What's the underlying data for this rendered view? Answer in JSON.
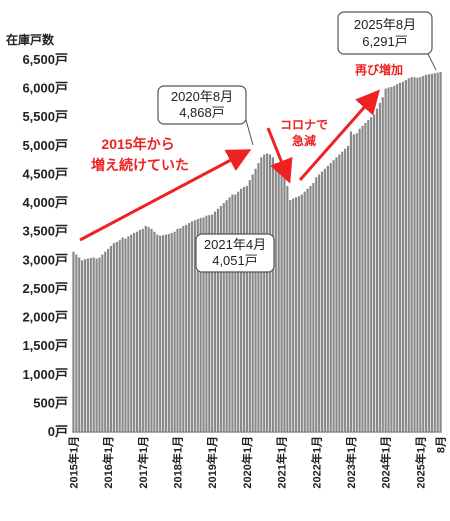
{
  "chart_data": {
    "type": "bar",
    "ylabel": "在庫戸数",
    "ylim": [
      0,
      6500
    ],
    "yticks": [
      0,
      500,
      1000,
      1500,
      2000,
      2500,
      3000,
      3500,
      4000,
      4500,
      5000,
      5500,
      6000,
      6500
    ],
    "ytick_labels": [
      "0戸",
      "500戸",
      "1,000戸",
      "1,500戸",
      "2,000戸",
      "2,500戸",
      "3,000戸",
      "3,500戸",
      "4,000戸",
      "4,500戸",
      "5,000戸",
      "5,500戸",
      "6,000戸",
      "6,500戸"
    ],
    "xtick_labels": [
      "2015年1月",
      "2016年1月",
      "2017年1月",
      "2018年1月",
      "2019年1月",
      "2020年1月",
      "2021年1月",
      "2022年1月",
      "2023年1月",
      "2024年1月",
      "2025年1月",
      "8月"
    ],
    "bar_color": "#888888",
    "yearly_anchors": [
      {
        "month": "2015年1月",
        "value": 3150
      },
      {
        "month": "2016年1月",
        "value": 3200
      },
      {
        "month": "2017年1月",
        "value": 3550
      },
      {
        "month": "2018年1月",
        "value": 3550
      },
      {
        "month": "2019年1月",
        "value": 3800
      },
      {
        "month": "2020年1月",
        "value": 4300
      },
      {
        "month": "2020年8月",
        "value": 4868
      },
      {
        "month": "2021年4月",
        "value": 4051
      },
      {
        "month": "2022年1月",
        "value": 4450
      },
      {
        "month": "2023年1月",
        "value": 5250
      },
      {
        "month": "2024年1月",
        "value": 6000
      },
      {
        "month": "2025年1月",
        "value": 6200
      },
      {
        "month": "2025年8月",
        "value": 6291
      }
    ],
    "values": [
      3150,
      3100,
      3050,
      3000,
      3020,
      3030,
      3040,
      3050,
      3030,
      3050,
      3100,
      3150,
      3200,
      3250,
      3300,
      3320,
      3350,
      3400,
      3380,
      3420,
      3450,
      3480,
      3500,
      3530,
      3550,
      3600,
      3580,
      3550,
      3500,
      3450,
      3430,
      3440,
      3450,
      3460,
      3480,
      3500,
      3550,
      3560,
      3600,
      3620,
      3650,
      3680,
      3700,
      3720,
      3740,
      3750,
      3780,
      3790,
      3800,
      3850,
      3900,
      3950,
      4000,
      4050,
      4100,
      4150,
      4150,
      4200,
      4250,
      4280,
      4300,
      4400,
      4500,
      4600,
      4700,
      4800,
      4850,
      4868,
      4850,
      4800,
      4700,
      4650,
      4550,
      4450,
      4300,
      4051,
      4080,
      4100,
      4120,
      4150,
      4200,
      4250,
      4300,
      4350,
      4450,
      4500,
      4550,
      4600,
      4650,
      4700,
      4750,
      4800,
      4850,
      4900,
      4950,
      5000,
      5250,
      5200,
      5220,
      5300,
      5350,
      5400,
      5450,
      5500,
      5550,
      5650,
      5750,
      5850,
      6000,
      6020,
      6030,
      6050,
      6080,
      6100,
      6120,
      6150,
      6180,
      6200,
      6200,
      6190,
      6200,
      6220,
      6240,
      6250,
      6260,
      6270,
      6280,
      6291
    ]
  },
  "callouts": {
    "peak2020": {
      "line1": "2020年8月",
      "line2": "4,868戸"
    },
    "low2021": {
      "line1": "2021年4月",
      "line2": "4,051戸"
    },
    "latest": {
      "line1": "2025年8月",
      "line2": "6,291戸"
    }
  },
  "annotations": {
    "rising_line1": "2015年から",
    "rising_line2": "増え続けていた",
    "covid_line1": "コロナで",
    "covid_line2": "急減",
    "again": "再び増加"
  },
  "colors": {
    "arrow": "#ee2222",
    "text_red": "#ee2222"
  }
}
